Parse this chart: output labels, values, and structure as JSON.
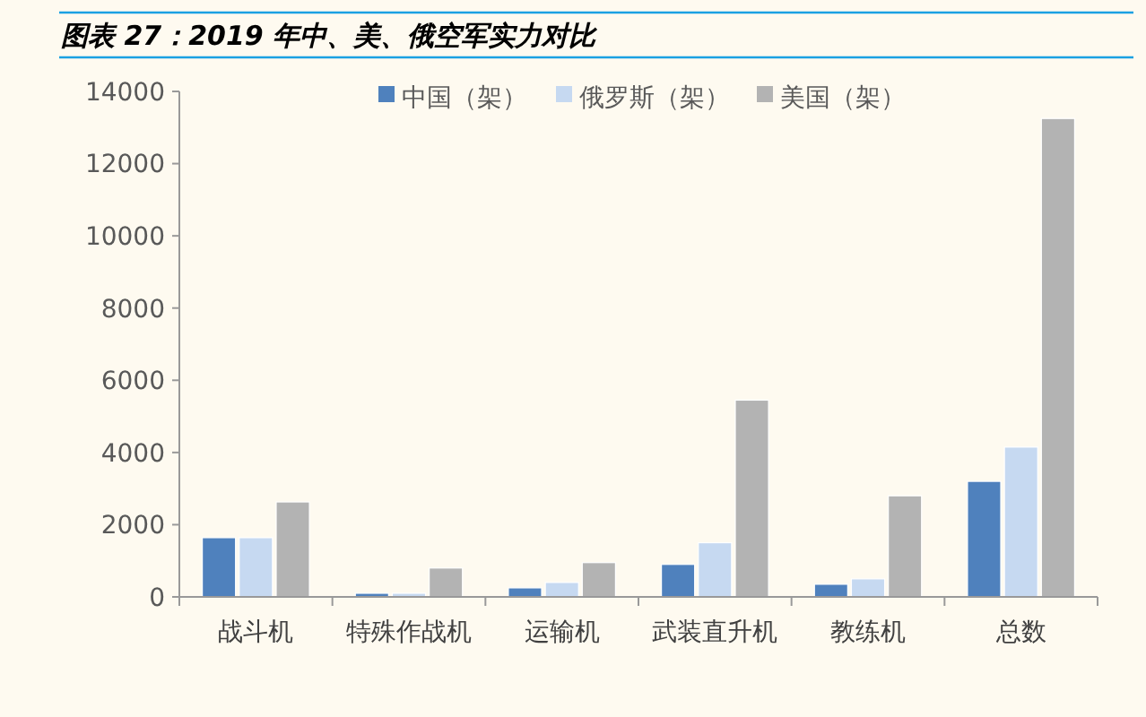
{
  "chart_data": {
    "type": "bar",
    "title": "图表 27：2019 年中、美、俄空军实力对比",
    "categories": [
      "战斗机",
      "特殊作战机",
      "运输机",
      "武装直升机",
      "教练机",
      "总数"
    ],
    "series": [
      {
        "name": "中国（架）",
        "color": "#4f81bd",
        "values": [
          1640,
          100,
          250,
          900,
          350,
          3200
        ]
      },
      {
        "name": "俄罗斯（架）",
        "color": "#c6d9f1",
        "values": [
          1640,
          100,
          400,
          1500,
          500,
          4150
        ]
      },
      {
        "name": "美国（架）",
        "color": "#b3b3b3",
        "values": [
          2630,
          800,
          950,
          5450,
          2800,
          13250
        ]
      }
    ],
    "ylim": [
      0,
      14000
    ],
    "yticks": [
      0,
      2000,
      4000,
      6000,
      8000,
      10000,
      12000,
      14000
    ],
    "grid": false,
    "legend": "top"
  }
}
